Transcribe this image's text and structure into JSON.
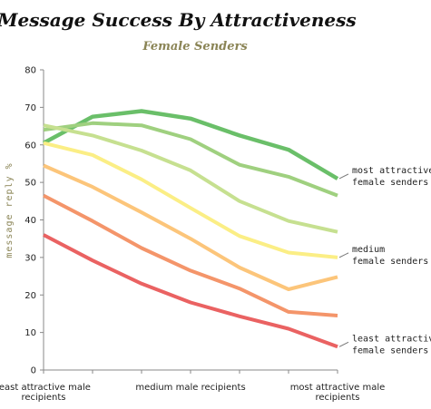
{
  "chart_data": {
    "type": "line",
    "title": "Message Success By Attractiveness",
    "subtitle": "Female Senders",
    "ylabel": "message reply %",
    "xlabel": "",
    "ylim": [
      0,
      80
    ],
    "yticks": [
      0,
      10,
      20,
      30,
      40,
      50,
      60,
      70,
      80
    ],
    "x_tick_labels": [
      {
        "line1": "least attractive male",
        "line2": "recipients"
      },
      {
        "line1": "medium male recipients",
        "line2": ""
      },
      {
        "line1": "most attractive male",
        "line2": "recipients"
      }
    ],
    "grid": false,
    "series": [
      {
        "color": "#6abf69",
        "width": 4.5,
        "values": [
          60.5,
          67.5,
          69,
          67,
          62.5,
          58.7,
          51
        ]
      },
      {
        "color": "#9fd07f",
        "width": 4,
        "values": [
          64,
          65.8,
          65.2,
          61.5,
          54.7,
          51.5,
          46.5
        ]
      },
      {
        "color": "#c6e090",
        "width": 4,
        "values": [
          65.2,
          62.5,
          58.5,
          53.2,
          45,
          39.7,
          36.8
        ]
      },
      {
        "color": "#fbee85",
        "width": 4,
        "values": [
          60.5,
          57.3,
          50.8,
          43.2,
          35.7,
          31.3,
          30
        ]
      },
      {
        "color": "#fcc57a",
        "width": 4,
        "values": [
          54.5,
          48.8,
          42,
          35,
          27.3,
          21.5,
          24.8
        ]
      },
      {
        "color": "#f4956a",
        "width": 4,
        "values": [
          46.5,
          39.7,
          32.5,
          26.5,
          21.7,
          15.5,
          14.5
        ]
      },
      {
        "color": "#ea6262",
        "width": 4,
        "values": [
          36,
          29.2,
          23,
          18,
          14.3,
          11,
          6.2
        ]
      }
    ],
    "annotations": [
      {
        "line1": "most attractive",
        "line2": "female senders",
        "y": 51
      },
      {
        "line1": "medium",
        "line2": "female senders",
        "y": 30
      },
      {
        "line1": "least attractive",
        "line2": "female senders",
        "y": 6.2
      }
    ]
  }
}
